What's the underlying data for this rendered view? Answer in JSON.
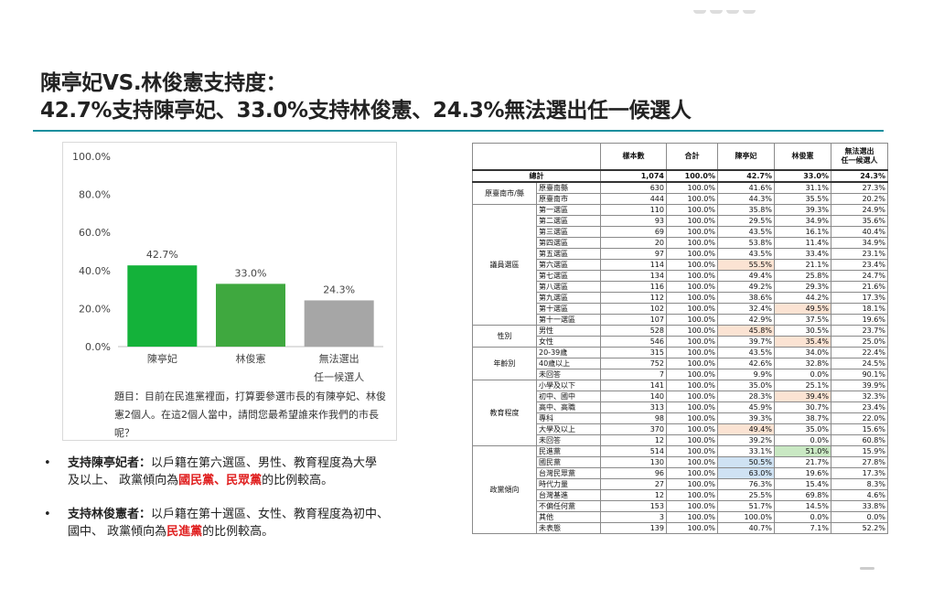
{
  "title": {
    "line1": "陳亭妃VS.林俊憲支持度：",
    "line2": "42.7%支持陳亭妃、33.0%支持林俊憲、24.3%無法選出任一候選人"
  },
  "chart_data": {
    "type": "bar",
    "categories": [
      "陳亭妃",
      "林俊憲",
      "無法選出\n任一候選人"
    ],
    "category_lines": [
      [
        "陳亭妃"
      ],
      [
        "林俊憲"
      ],
      [
        "無法選出",
        "任一候選人"
      ]
    ],
    "values": [
      42.7,
      33.0,
      24.3
    ],
    "value_labels": [
      "42.7%",
      "33.0%",
      "24.3%"
    ],
    "colors": [
      "#14b23a",
      "#3fa83f",
      "#a6a6a6"
    ],
    "ylim": [
      0,
      100
    ],
    "yticks": [
      "0.0%",
      "20.0%",
      "40.0%",
      "60.0%",
      "80.0%",
      "100.0%"
    ],
    "ytick_values": [
      0,
      20,
      40,
      60,
      80,
      100
    ],
    "grid": false,
    "title": "",
    "xlabel": "",
    "ylabel": ""
  },
  "chart_note": {
    "line1": "題目：目前在民進黨裡面，打算要參選市長的有陳亭妃、林俊",
    "line2": "憲2個人。在這2個人當中，請問您最希望誰來作我們的市長",
    "line3": "呢？"
  },
  "bullets": [
    {
      "dot": "•",
      "lead": "支持陳亭妃者：",
      "text1": "以戶籍在第六選區、男性、教育程度為大學",
      "text2": "及以上、 政黨傾向為",
      "red": "國民黨、民眾黨",
      "tail": "的比例較高。"
    },
    {
      "dot": "•",
      "lead": "支持林俊憲者：",
      "text1": "以戶籍在第十選區、女性、教育程度為初中、",
      "text2": "國中、 政黨傾向為",
      "red": "民進黨",
      "tail": "的比例較高。"
    }
  ],
  "table": {
    "headers": [
      "樣本數",
      "合計",
      "陳亭妃",
      "林俊憲",
      "無法選出\n任一候選人"
    ],
    "total": {
      "label": "總計",
      "cells": [
        "1,074",
        "100.0%",
        "42.7%",
        "33.0%",
        "24.3%"
      ]
    },
    "groups": [
      {
        "name": "原臺南市/縣",
        "rows": [
          {
            "label": "原臺南縣",
            "cells": [
              "630",
              "100.0%",
              "41.6%",
              "31.1%",
              "27.3%"
            ]
          },
          {
            "label": "原臺南市",
            "cells": [
              "444",
              "100.0%",
              "44.3%",
              "35.5%",
              "20.2%"
            ]
          }
        ]
      },
      {
        "name": "議員選區",
        "rows": [
          {
            "label": "第一選區",
            "cells": [
              "110",
              "100.0%",
              "35.8%",
              "39.3%",
              "24.9%"
            ]
          },
          {
            "label": "第二選區",
            "cells": [
              "93",
              "100.0%",
              "29.5%",
              "34.9%",
              "35.6%"
            ]
          },
          {
            "label": "第三選區",
            "cells": [
              "69",
              "100.0%",
              "43.5%",
              "16.1%",
              "40.4%"
            ]
          },
          {
            "label": "第四選區",
            "cells": [
              "20",
              "100.0%",
              "53.8%",
              "11.4%",
              "34.9%"
            ]
          },
          {
            "label": "第五選區",
            "cells": [
              "97",
              "100.0%",
              "43.5%",
              "33.4%",
              "23.1%"
            ]
          },
          {
            "label": "第六選區",
            "cells": [
              "114",
              "100.0%",
              "55.5%",
              "21.1%",
              "23.4%"
            ],
            "hl": {
              "2": "orange"
            }
          },
          {
            "label": "第七選區",
            "cells": [
              "134",
              "100.0%",
              "49.4%",
              "25.8%",
              "24.7%"
            ]
          },
          {
            "label": "第八選區",
            "cells": [
              "116",
              "100.0%",
              "49.2%",
              "29.3%",
              "21.6%"
            ]
          },
          {
            "label": "第九選區",
            "cells": [
              "112",
              "100.0%",
              "38.6%",
              "44.2%",
              "17.3%"
            ]
          },
          {
            "label": "第十選區",
            "cells": [
              "102",
              "100.0%",
              "32.4%",
              "49.5%",
              "18.1%"
            ],
            "hl": {
              "3": "orange"
            }
          },
          {
            "label": "第十一選區",
            "cells": [
              "107",
              "100.0%",
              "42.9%",
              "37.5%",
              "19.6%"
            ]
          }
        ]
      },
      {
        "name": "性別",
        "rows": [
          {
            "label": "男性",
            "cells": [
              "528",
              "100.0%",
              "45.8%",
              "30.5%",
              "23.7%"
            ],
            "hl": {
              "2": "orange"
            }
          },
          {
            "label": "女性",
            "cells": [
              "546",
              "100.0%",
              "39.7%",
              "35.4%",
              "25.0%"
            ],
            "hl": {
              "3": "orange"
            }
          }
        ]
      },
      {
        "name": "年齡別",
        "rows": [
          {
            "label": "20-39歲",
            "cells": [
              "315",
              "100.0%",
              "43.5%",
              "34.0%",
              "22.4%"
            ]
          },
          {
            "label": "40歲以上",
            "cells": [
              "752",
              "100.0%",
              "42.6%",
              "32.8%",
              "24.5%"
            ]
          },
          {
            "label": "未回答",
            "cells": [
              "7",
              "100.0%",
              "9.9%",
              "0.0%",
              "90.1%"
            ]
          }
        ]
      },
      {
        "name": "教育程度",
        "rows": [
          {
            "label": "小學及以下",
            "cells": [
              "141",
              "100.0%",
              "35.0%",
              "25.1%",
              "39.9%"
            ]
          },
          {
            "label": "初中、國中",
            "cells": [
              "140",
              "100.0%",
              "28.3%",
              "39.4%",
              "32.3%"
            ],
            "hl": {
              "3": "orange"
            }
          },
          {
            "label": "高中、高職",
            "cells": [
              "313",
              "100.0%",
              "45.9%",
              "30.7%",
              "23.4%"
            ]
          },
          {
            "label": "專科",
            "cells": [
              "98",
              "100.0%",
              "39.3%",
              "38.7%",
              "22.0%"
            ]
          },
          {
            "label": "大學及以上",
            "cells": [
              "370",
              "100.0%",
              "49.4%",
              "35.0%",
              "15.6%"
            ],
            "hl": {
              "2": "orange"
            }
          },
          {
            "label": "未回答",
            "cells": [
              "12",
              "100.0%",
              "39.2%",
              "0.0%",
              "60.8%"
            ]
          }
        ]
      },
      {
        "name": "政黨傾向",
        "rows": [
          {
            "label": "民進黨",
            "cells": [
              "514",
              "100.0%",
              "33.1%",
              "51.0%",
              "15.9%"
            ],
            "hl": {
              "3": "green"
            }
          },
          {
            "label": "國民黨",
            "cells": [
              "130",
              "100.0%",
              "50.5%",
              "21.7%",
              "27.8%"
            ],
            "hl": {
              "2": "blue"
            }
          },
          {
            "label": "台灣民眾黨",
            "cells": [
              "96",
              "100.0%",
              "63.0%",
              "19.6%",
              "17.3%"
            ],
            "hl": {
              "2": "blue"
            }
          },
          {
            "label": "時代力量",
            "cells": [
              "27",
              "100.0%",
              "76.3%",
              "15.4%",
              "8.3%"
            ]
          },
          {
            "label": "台灣基進",
            "cells": [
              "12",
              "100.0%",
              "25.5%",
              "69.8%",
              "4.6%"
            ]
          },
          {
            "label": "不偏任何黨",
            "cells": [
              "153",
              "100.0%",
              "51.7%",
              "14.5%",
              "33.8%"
            ]
          },
          {
            "label": "其他",
            "cells": [
              "3",
              "100.0%",
              "100.0%",
              "0.0%",
              "0.0%"
            ]
          },
          {
            "label": "未表態",
            "cells": [
              "139",
              "100.0%",
              "40.7%",
              "7.1%",
              "52.2%"
            ]
          }
        ]
      }
    ]
  }
}
